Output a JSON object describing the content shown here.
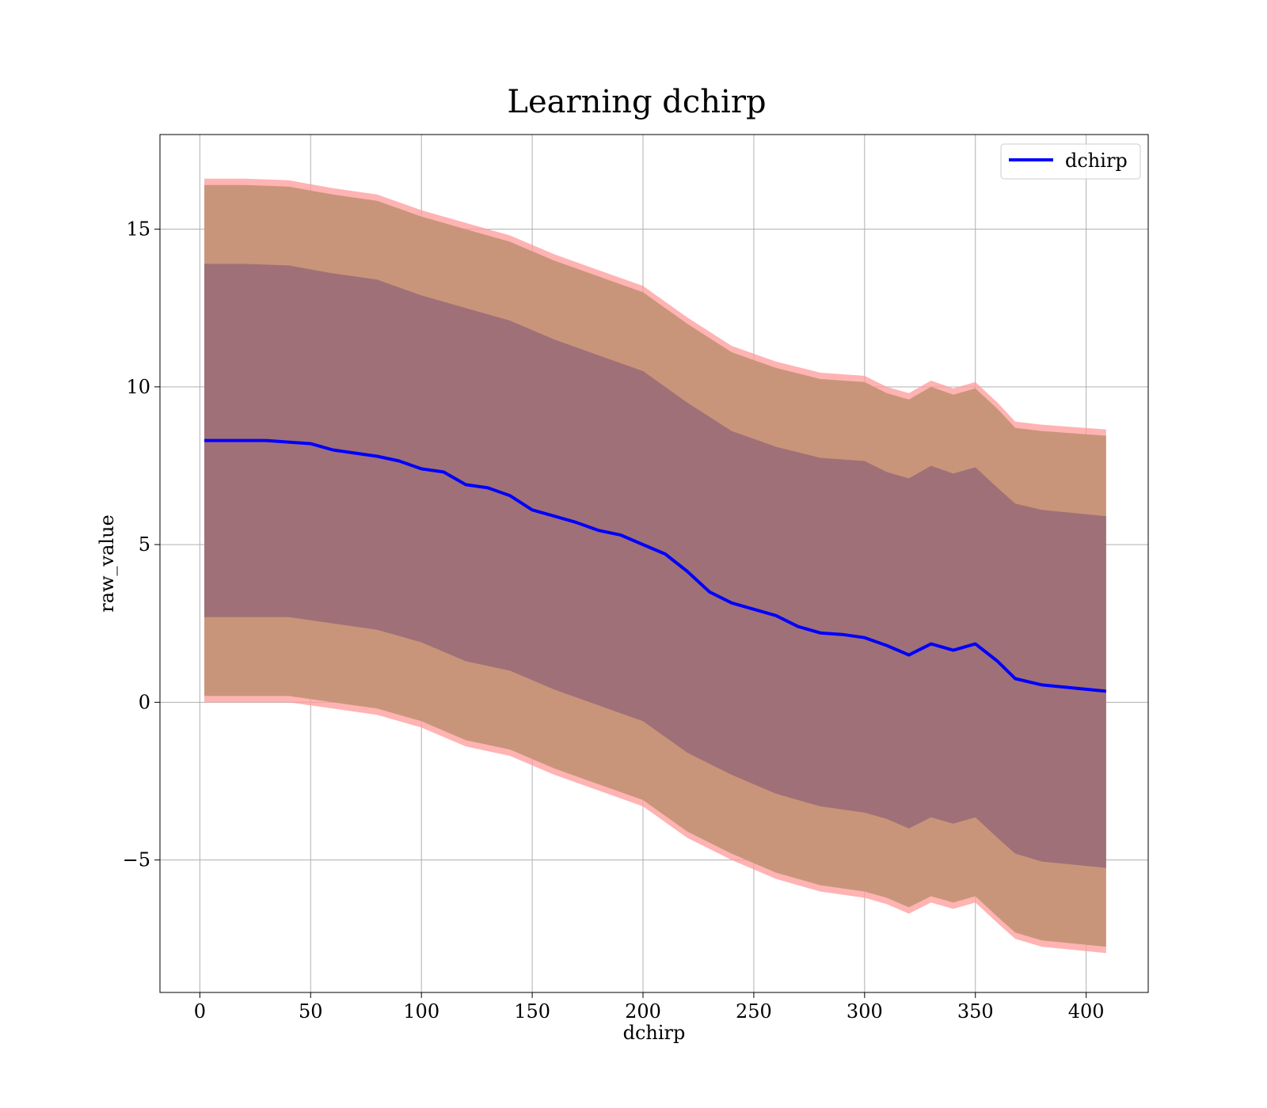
{
  "chart_data": {
    "type": "line",
    "title": "Learning dchirp",
    "xlabel": "dchirp",
    "ylabel": "raw_value",
    "xlim": [
      -18,
      428
    ],
    "ylim": [
      -9.2,
      18.0
    ],
    "x_ticks": [
      0,
      50,
      100,
      150,
      200,
      250,
      300,
      350,
      400
    ],
    "y_ticks": [
      -5,
      0,
      5,
      10,
      15
    ],
    "y_tick_labels": [
      "−5",
      "0",
      "5",
      "10",
      "15"
    ],
    "grid": true,
    "legend_position": "top-right",
    "colors": {
      "line": "#0000ff",
      "outer_band": "#ff9999",
      "middle_band": "#c9957a",
      "inner_band": "#a07078"
    },
    "series": [
      {
        "name": "dchirp",
        "x": [
          2,
          10,
          20,
          30,
          40,
          50,
          60,
          70,
          80,
          90,
          100,
          110,
          120,
          130,
          140,
          150,
          160,
          170,
          180,
          190,
          200,
          210,
          220,
          230,
          240,
          250,
          260,
          270,
          280,
          290,
          300,
          310,
          320,
          330,
          340,
          350,
          360,
          368,
          380,
          409
        ],
        "y": [
          8.3,
          8.3,
          8.3,
          8.3,
          8.25,
          8.2,
          8.0,
          7.9,
          7.8,
          7.65,
          7.4,
          7.3,
          6.9,
          6.8,
          6.55,
          6.1,
          5.9,
          5.7,
          5.45,
          5.3,
          5.0,
          4.7,
          4.15,
          3.5,
          3.15,
          2.95,
          2.75,
          2.4,
          2.2,
          2.15,
          2.05,
          1.8,
          1.5,
          1.85,
          1.65,
          1.85,
          1.3,
          0.75,
          0.55,
          0.35
        ]
      }
    ],
    "bands": [
      {
        "name": "outer",
        "x": [
          2,
          20,
          40,
          60,
          80,
          100,
          120,
          140,
          160,
          180,
          200,
          220,
          240,
          260,
          280,
          300,
          310,
          320,
          330,
          340,
          350,
          360,
          368,
          380,
          409
        ],
        "upper": [
          16.6,
          16.6,
          16.55,
          16.3,
          16.1,
          15.6,
          15.2,
          14.8,
          14.2,
          13.7,
          13.2,
          12.2,
          11.3,
          10.8,
          10.45,
          10.35,
          10.0,
          9.8,
          10.2,
          9.95,
          10.15,
          9.5,
          8.9,
          8.8,
          8.65
        ],
        "lower": [
          0.0,
          0.0,
          0.0,
          -0.2,
          -0.4,
          -0.8,
          -1.4,
          -1.7,
          -2.3,
          -2.8,
          -3.3,
          -4.3,
          -5.0,
          -5.6,
          -6.0,
          -6.2,
          -6.4,
          -6.7,
          -6.35,
          -6.55,
          -6.35,
          -7.0,
          -7.5,
          -7.75,
          -7.95
        ]
      },
      {
        "name": "middle",
        "x": [
          2,
          20,
          40,
          60,
          80,
          100,
          120,
          140,
          160,
          180,
          200,
          220,
          240,
          260,
          280,
          300,
          310,
          320,
          330,
          340,
          350,
          360,
          368,
          380,
          409
        ],
        "upper": [
          16.4,
          16.4,
          16.35,
          16.1,
          15.9,
          15.4,
          15.0,
          14.6,
          14.0,
          13.5,
          13.0,
          12.0,
          11.1,
          10.6,
          10.25,
          10.15,
          9.8,
          9.6,
          10.0,
          9.75,
          9.95,
          9.3,
          8.7,
          8.6,
          8.45
        ],
        "lower": [
          0.2,
          0.2,
          0.2,
          0.0,
          -0.2,
          -0.6,
          -1.2,
          -1.5,
          -2.1,
          -2.6,
          -3.1,
          -4.1,
          -4.8,
          -5.4,
          -5.8,
          -6.0,
          -6.2,
          -6.5,
          -6.15,
          -6.35,
          -6.15,
          -6.8,
          -7.3,
          -7.55,
          -7.75
        ]
      },
      {
        "name": "inner",
        "x": [
          2,
          20,
          40,
          60,
          80,
          100,
          120,
          140,
          160,
          180,
          200,
          220,
          240,
          260,
          280,
          300,
          310,
          320,
          330,
          340,
          350,
          360,
          368,
          380,
          409
        ],
        "upper": [
          13.9,
          13.9,
          13.85,
          13.6,
          13.4,
          12.9,
          12.5,
          12.1,
          11.5,
          11.0,
          10.5,
          9.5,
          8.6,
          8.1,
          7.75,
          7.65,
          7.3,
          7.1,
          7.5,
          7.25,
          7.45,
          6.8,
          6.3,
          6.1,
          5.9
        ],
        "lower": [
          2.7,
          2.7,
          2.7,
          2.5,
          2.3,
          1.9,
          1.3,
          1.0,
          0.4,
          -0.1,
          -0.6,
          -1.6,
          -2.3,
          -2.9,
          -3.3,
          -3.5,
          -3.7,
          -4.0,
          -3.65,
          -3.85,
          -3.65,
          -4.3,
          -4.8,
          -5.05,
          -5.25
        ]
      }
    ]
  }
}
